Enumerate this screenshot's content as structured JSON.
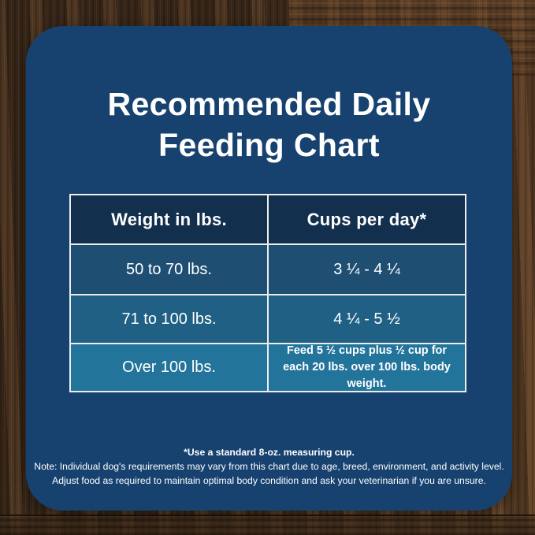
{
  "title": {
    "line1": "Recommended Daily",
    "line2": "Feeding Chart"
  },
  "chart_data": {
    "type": "table",
    "title": "Recommended Daily Feeding Chart",
    "columns": [
      "Weight in lbs.",
      "Cups per day*"
    ],
    "rows": [
      [
        "50 to 70 lbs.",
        "3 ¼ - 4 ¼"
      ],
      [
        "71 to 100 lbs.",
        "4 ¼ - 5 ½"
      ],
      [
        "Over 100 lbs.",
        "Feed 5 ½ cups plus ½ cup for each 20 lbs. over 100 lbs. body weight."
      ]
    ],
    "footnotes": [
      "*Use a standard 8-oz. measuring cup.",
      "Note: Individual dog's requirements may vary from this chart due to age, breed, environment, and activity level.",
      "Adjust food as required to maintain optimal body condition and ask your veterinarian if you are unsure."
    ]
  },
  "colors": {
    "panel": "#174270",
    "header_cell": "#132F4E",
    "row1": "#1E4F73",
    "row2": "#1F6084",
    "row3": "#23749B",
    "grid_line": "#EDEDED",
    "text": "#FFFFFF",
    "wood_dark": "#3A2A1D",
    "wood_light": "#6B4B2E"
  }
}
